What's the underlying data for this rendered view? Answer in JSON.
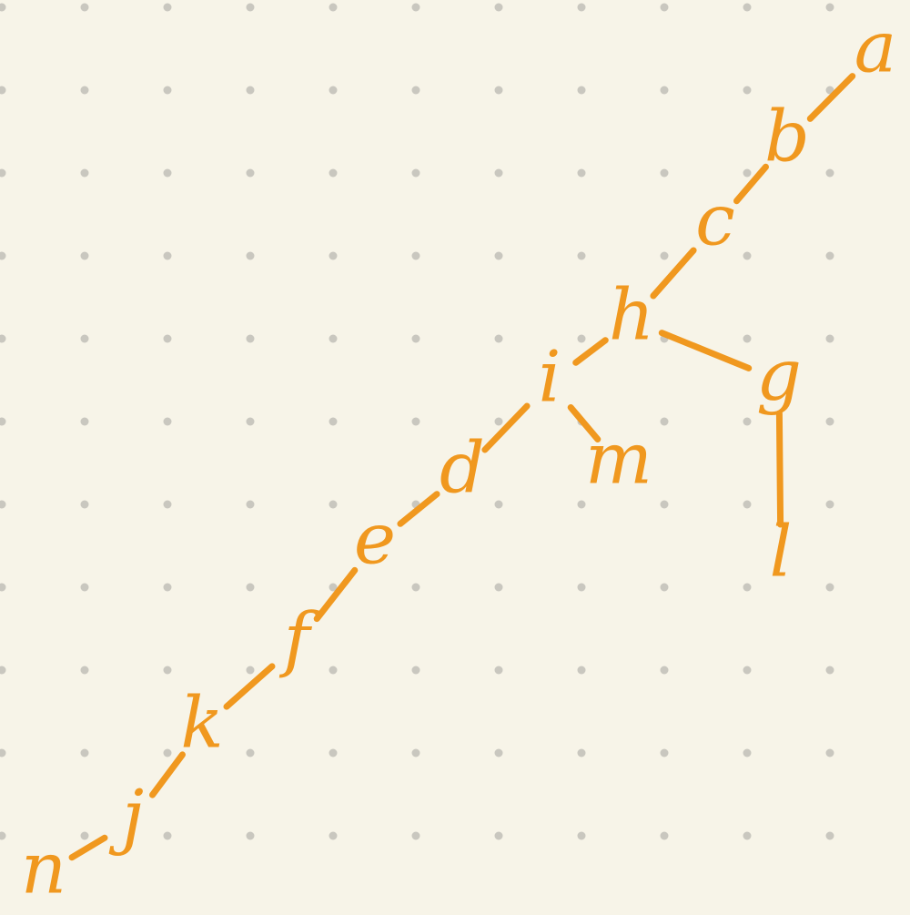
{
  "colors": {
    "background": "#f7f4e8",
    "ink": "#f0981f",
    "grid_dot": "#c9c7bf"
  },
  "nodes": [
    {
      "id": "a",
      "label": "a"
    },
    {
      "id": "b",
      "label": "b"
    },
    {
      "id": "c",
      "label": "c"
    },
    {
      "id": "h",
      "label": "h"
    },
    {
      "id": "g",
      "label": "g"
    },
    {
      "id": "l",
      "label": "l"
    },
    {
      "id": "i",
      "label": "i"
    },
    {
      "id": "m",
      "label": "m"
    },
    {
      "id": "d",
      "label": "d"
    },
    {
      "id": "e",
      "label": "e"
    },
    {
      "id": "f",
      "label": "f"
    },
    {
      "id": "k",
      "label": "k"
    },
    {
      "id": "j",
      "label": "j"
    },
    {
      "id": "n",
      "label": "n"
    }
  ],
  "edges": [
    [
      "a",
      "b"
    ],
    [
      "b",
      "c"
    ],
    [
      "c",
      "h"
    ],
    [
      "h",
      "g"
    ],
    [
      "g",
      "l"
    ],
    [
      "h",
      "i"
    ],
    [
      "i",
      "m"
    ],
    [
      "i",
      "d"
    ],
    [
      "d",
      "e"
    ],
    [
      "e",
      "f"
    ],
    [
      "f",
      "k"
    ],
    [
      "k",
      "j"
    ],
    [
      "j",
      "n"
    ]
  ]
}
